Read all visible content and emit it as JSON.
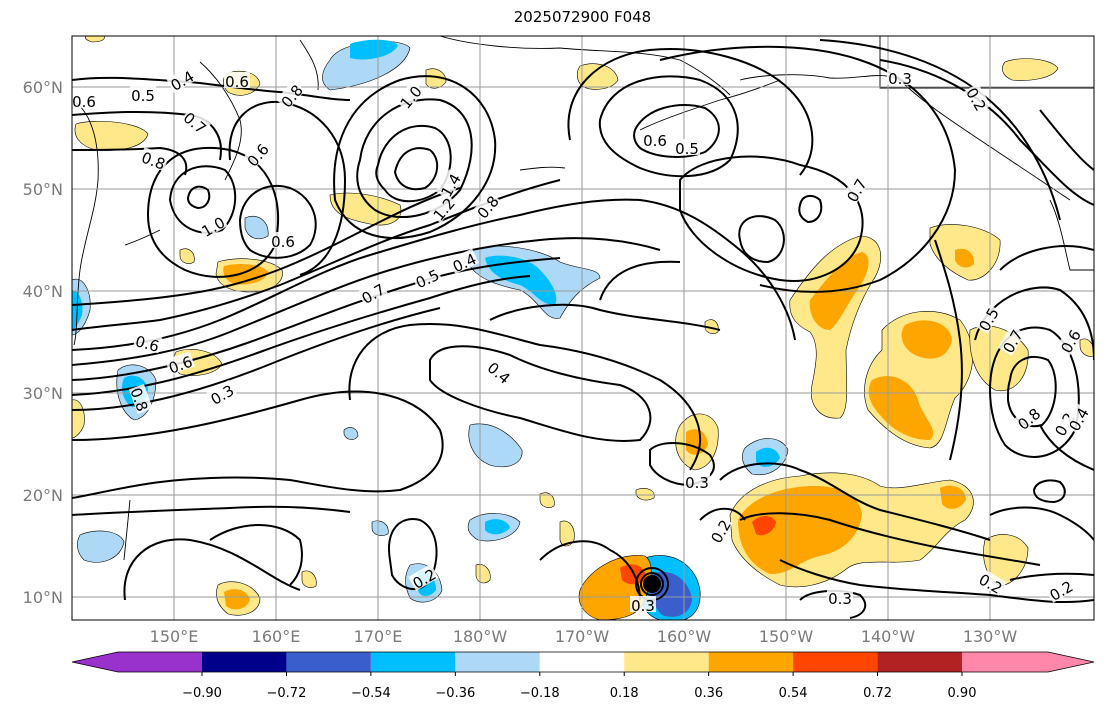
{
  "title": "2025072900 F048",
  "map": {
    "lon_labels": [
      "150°E",
      "160°E",
      "170°E",
      "180°W",
      "170°W",
      "160°W",
      "150°W",
      "140°W",
      "130°W"
    ],
    "lat_labels": [
      "60°N",
      "50°N",
      "40°N",
      "30°N",
      "20°N",
      "10°N"
    ],
    "gridlines": true
  },
  "colorbar": {
    "labels": [
      "−0.90",
      "−0.72",
      "−0.54",
      "−0.36",
      "−0.18",
      "0.18",
      "0.36",
      "0.54",
      "0.72",
      "0.90"
    ],
    "colors": [
      "#9932cc",
      "#00008b",
      "#3a5fcd",
      "#00bfff",
      "#add8f6",
      "#ffffff",
      "#ffe88a",
      "#ffa500",
      "#ff4500",
      "#b22222",
      "#ff88aa"
    ],
    "extend": "both"
  },
  "contour_labels": [
    "0.4",
    "0.5",
    "0.6",
    "0.7",
    "0.8",
    "1.0",
    "0.6",
    "0.8",
    "0.6",
    "1.0",
    "0.6",
    "1.4",
    "1.2",
    "0.8",
    "0.4",
    "0.5",
    "0.7",
    "0.6",
    "0.6",
    "0.3",
    "0.4",
    "0.5",
    "0.6",
    "0.3",
    "0.7",
    "0.2",
    "0.5",
    "0.7",
    "0.6",
    "0.8",
    "0.2",
    "0.4",
    "0.3",
    "0.2",
    "0.2",
    "0.3",
    "0.3",
    "0.2",
    "0.2",
    "0.8"
  ],
  "icons": {
    "storm": "typhoon-eye-marker"
  }
}
